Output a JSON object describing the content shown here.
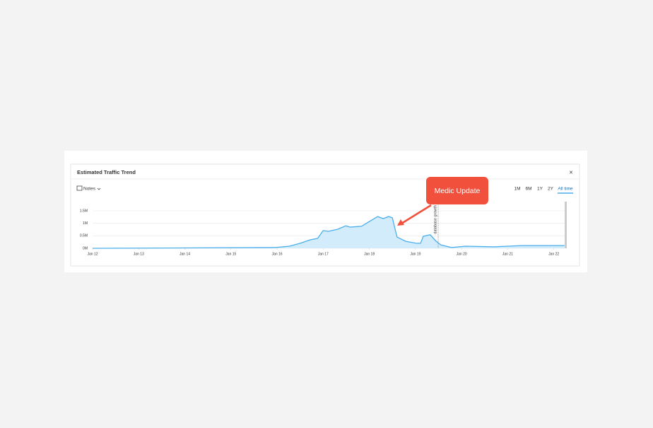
{
  "header": {
    "title": "Estimated Traffic Trend",
    "close": "×"
  },
  "controls": {
    "notes": "Notes",
    "ranges": [
      "1M",
      "6M",
      "1Y",
      "2Y",
      "All time"
    ]
  },
  "callout": "Medic Update",
  "chart_data": {
    "type": "area",
    "annotation": "database growth",
    "color": "#4aaeea",
    "fill": "#d3ecfb",
    "x": [
      2012,
      2015.96,
      2016.27,
      2016.5,
      2016.72,
      2016.88,
      2017.0,
      2017.11,
      2017.31,
      2017.49,
      2017.58,
      2017.83,
      2017.98,
      2018.18,
      2018.3,
      2018.42,
      2018.5,
      2018.6,
      2018.79,
      2019.02,
      2019.11,
      2019.17,
      2019.32,
      2019.45,
      2019.55,
      2019.78,
      2020.08,
      2020.7,
      2021.31,
      2022.23
    ],
    "values": [
      0,
      30000,
      85000,
      200000,
      340000,
      400000,
      710000,
      680000,
      760000,
      900000,
      850000,
      880000,
      1050000,
      1270000,
      1190000,
      1270000,
      1220000,
      450000,
      280000,
      200000,
      200000,
      480000,
      540000,
      280000,
      140000,
      30000,
      85000,
      60000,
      110000,
      110000
    ],
    "xlim": [
      2012,
      2022.25
    ],
    "ylim": [
      0,
      1500000
    ],
    "xticks": [
      {
        "value": 2012,
        "label": "Jan 12"
      },
      {
        "value": 2013,
        "label": "Jan 13"
      },
      {
        "value": 2014,
        "label": "Jan 14"
      },
      {
        "value": 2015,
        "label": "Jan 15"
      },
      {
        "value": 2016,
        "label": "Jan 16"
      },
      {
        "value": 2017,
        "label": "Jan 17"
      },
      {
        "value": 2018,
        "label": "Jan 18"
      },
      {
        "value": 2019,
        "label": "Jan 19"
      },
      {
        "value": 2020,
        "label": "Jan 20"
      },
      {
        "value": 2021,
        "label": "Jan 21"
      },
      {
        "value": 2022,
        "label": "Jan 22"
      }
    ],
    "yticks": [
      {
        "value": 0,
        "label": "0M"
      },
      {
        "value": 500000,
        "label": "0.5M"
      },
      {
        "value": 1000000,
        "label": "1M"
      },
      {
        "value": 1500000,
        "label": "1.5M"
      }
    ],
    "grid": true
  }
}
